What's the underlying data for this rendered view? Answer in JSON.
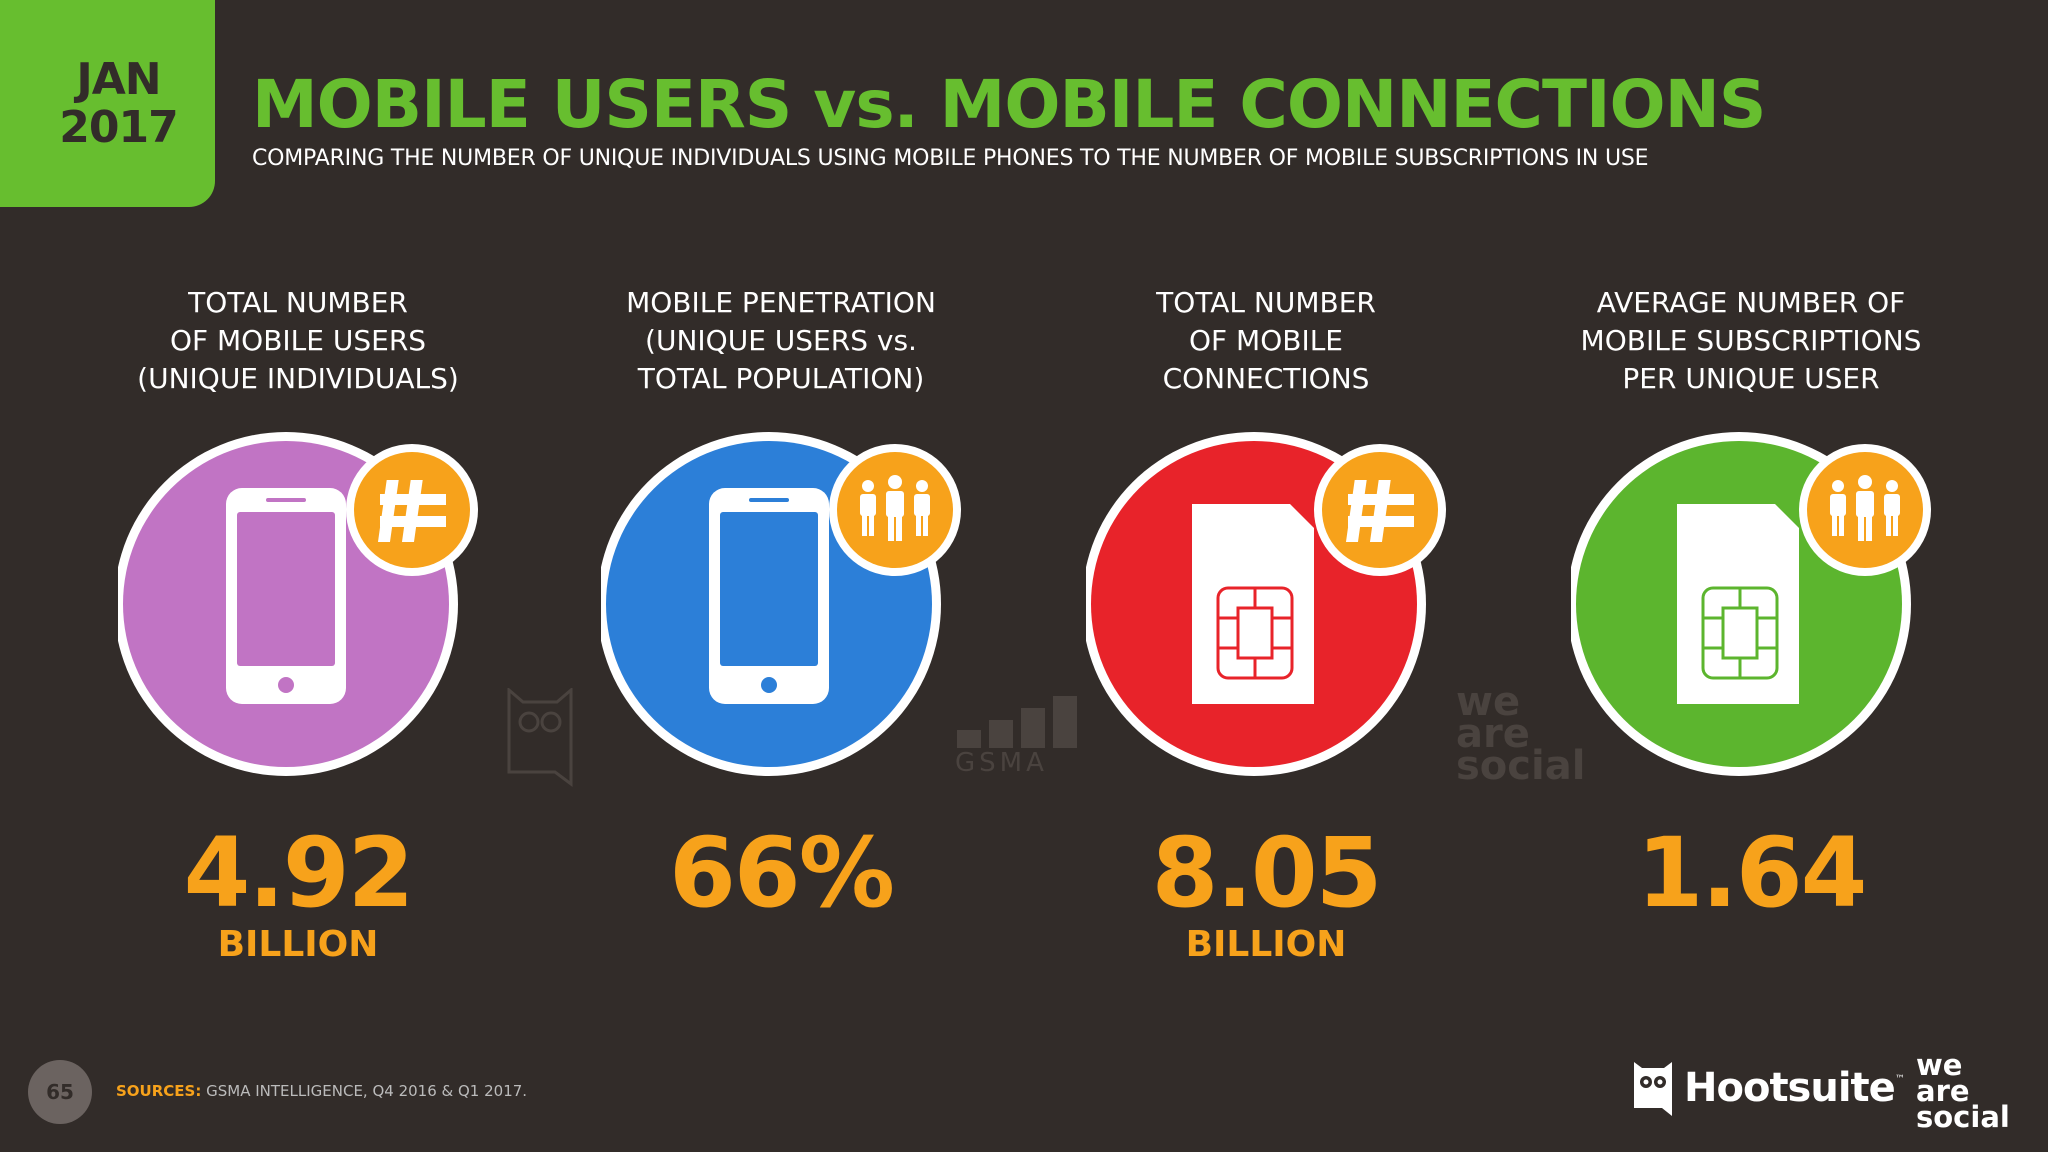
{
  "header": {
    "badge_month": "JAN",
    "badge_year": "2017",
    "title": "MOBILE USERS vs. MOBILE CONNECTIONS",
    "subtitle": "COMPARING THE NUMBER OF UNIQUE INDIVIDUALS USING MOBILE PHONES TO THE NUMBER OF MOBILE SUBSCRIPTIONS IN USE"
  },
  "stats": [
    {
      "label_lines": [
        "TOTAL NUMBER",
        "OF MOBILE USERS",
        "(UNIQUE INDIVIDUALS)"
      ],
      "value": "4.92",
      "unit": "BILLION",
      "circle_color": "#c174c4",
      "icon": "phone-icon",
      "badge_icon": "hash-icon"
    },
    {
      "label_lines": [
        "MOBILE PENETRATION",
        "(UNIQUE USERS vs.",
        "TOTAL POPULATION)"
      ],
      "value": "66%",
      "unit": "",
      "circle_color": "#2c7fd8",
      "icon": "phone-icon",
      "badge_icon": "people-icon"
    },
    {
      "label_lines": [
        "TOTAL NUMBER",
        "OF MOBILE",
        "CONNECTIONS"
      ],
      "value": "8.05",
      "unit": "BILLION",
      "circle_color": "#e8232a",
      "icon": "sim-card-icon",
      "badge_icon": "hash-icon"
    },
    {
      "label_lines": [
        "AVERAGE NUMBER OF",
        "MOBILE SUBSCRIPTIONS",
        "PER UNIQUE USER"
      ],
      "value": "1.64",
      "unit": "",
      "circle_color": "#5cb52e",
      "icon": "sim-card-icon",
      "badge_icon": "people-icon"
    }
  ],
  "watermarks": {
    "gsma": "GSMA",
    "wearesocial": [
      "we",
      "are",
      "social"
    ]
  },
  "footer": {
    "page_number": "65",
    "sources_label": "SOURCES:",
    "sources_text": "GSMA INTELLIGENCE, Q4 2016 & Q1 2017.",
    "hootsuite": "Hootsuite",
    "hootsuite_tm": "™",
    "wearesocial": [
      "we",
      "are",
      "social"
    ]
  },
  "colors": {
    "background": "#322c29",
    "accent_green": "#67be2f",
    "accent_orange": "#f7a21b"
  }
}
